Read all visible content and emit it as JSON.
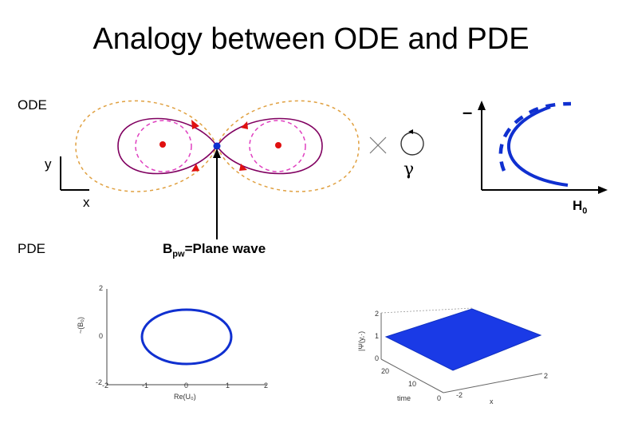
{
  "title": "Analogy between ODE and PDE",
  "labels": {
    "ode": "ODE",
    "pde": "PDE",
    "y_axis": "y",
    "x_axis": "x",
    "gamma": "γ",
    "minus": "–",
    "h0_base": "H",
    "h0_sub": "0",
    "bpw_base": "B",
    "bpw_sub": "pw",
    "bpw_rest": "=Plane wave"
  },
  "plot_left": {
    "ylabel": "~(B₀)",
    "xlabel": "Re(U₀)",
    "yticks": [
      "2",
      "0",
      "-2"
    ],
    "xticks": [
      "-2",
      "-1",
      "0",
      "1",
      "2"
    ]
  },
  "plot_right": {
    "zlabel": "|Ψ(y,·)",
    "zticks": [
      "2",
      "1",
      "0"
    ],
    "time_label": "time",
    "time_ticks": [
      "20",
      "10",
      "0"
    ],
    "x_ticks": [
      "2",
      "-2"
    ],
    "x_label": "x"
  },
  "colors": {
    "orbit": "#800060",
    "dashed_pink": "#e040c0",
    "dashed_orange": "#e0a040",
    "blue": "#1030d0",
    "red": "#e01010",
    "surface": "#1a3ae6"
  }
}
